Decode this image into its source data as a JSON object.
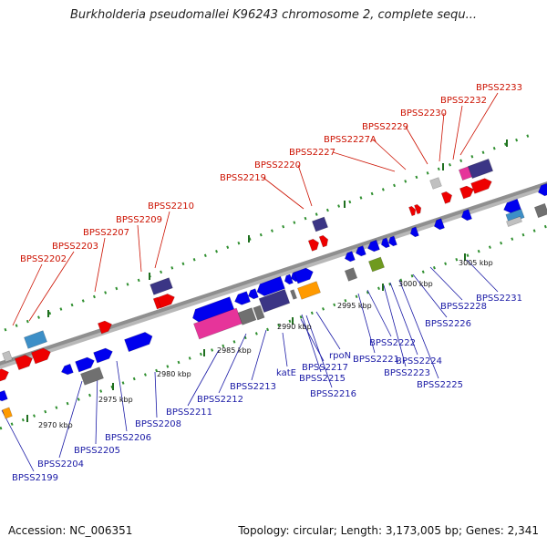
{
  "title": "Burkholderia pseudomallei K96243 chromosome 2, complete sequ...",
  "footer": {
    "accession": "Accession: NC_006351",
    "stats": "Topology: circular; Length: 3,173,005 bp; Genes: 2,341"
  },
  "colors": {
    "backbone": "#8f8f8f",
    "track_dash": "#2f8f2f",
    "tick": "#1f6f1f",
    "label_top": "#cc1100",
    "label_bottom": "#1a1aa6",
    "gene_red": "#ee0000",
    "gene_blue": "#0000ee",
    "gene_navy": "#3b3585",
    "gene_pink": "#e6349a",
    "gene_grey": "#707070",
    "gene_orange": "#ff9a00",
    "gene_steel": "#3d8fc7",
    "gene_olive": "#6f9a1f",
    "gene_light": "#c0c0c0"
  },
  "kbp_labels": [
    "2970 kbp",
    "2975 kbp",
    "2980 kbp",
    "2985 kbp",
    "2990 kbp",
    "2995 kbp",
    "3000 kbp",
    "3005 kbp"
  ],
  "top_labels": [
    "BPSS2202",
    "BPSS2203",
    "BPSS2207",
    "BPSS2209",
    "BPSS2210",
    "BPSS2219",
    "BPSS2220",
    "BPSS2227",
    "BPSS2227A",
    "BPSS2229",
    "BPSS2230",
    "BPSS2232",
    "BPSS2233"
  ],
  "bottom_labels": [
    "BPSS2199",
    "BPSS2204",
    "BPSS2205",
    "BPSS2206",
    "BPSS2208",
    "BPSS2211",
    "BPSS2212",
    "BPSS2213",
    "katE",
    "BPSS2215",
    "BPSS2217",
    "BPSS2216",
    "rpoN",
    "BPSS2221",
    "BPSS2222",
    "BPSS2223",
    "BPSS2224",
    "BPSS2225",
    "BPSS2226",
    "BPSS2228",
    "BPSS2231"
  ]
}
